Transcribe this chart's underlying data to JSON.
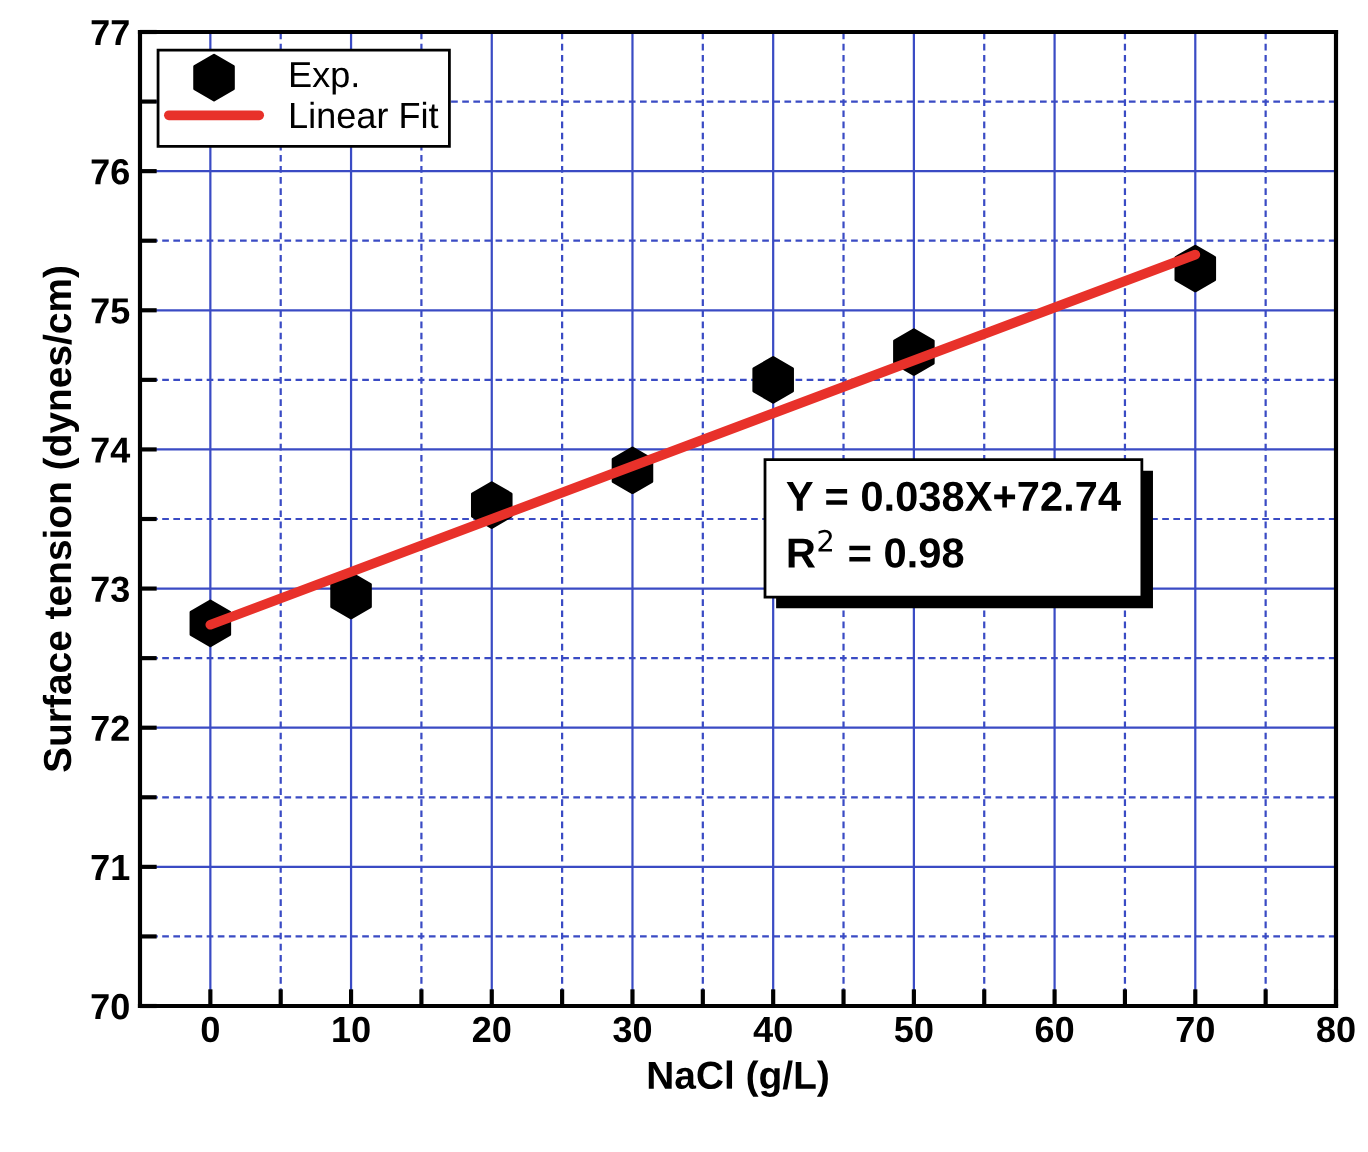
{
  "chart_data": {
    "type": "scatter",
    "xlabel": "NaCl (g/L)",
    "ylabel": "Surface tension (dynes/cm)",
    "xlim": [
      -5,
      80
    ],
    "xticks": [
      0,
      {
        "value": 5,
        "label": null
      },
      10,
      {
        "value": 15,
        "label": null
      },
      20,
      {
        "value": 25,
        "label": null
      },
      30,
      {
        "value": 35,
        "label": null
      },
      40,
      {
        "value": 45,
        "label": null
      },
      50,
      {
        "value": 55,
        "label": null
      },
      60,
      {
        "value": 65,
        "label": null
      },
      70,
      {
        "value": 75,
        "label": null
      },
      80
    ],
    "ylim": [
      70,
      77
    ],
    "yticks": [
      70,
      {
        "value": 70.5,
        "label": null
      },
      71,
      {
        "value": 71.5,
        "label": null
      },
      72,
      {
        "value": 72.5,
        "label": null
      },
      73,
      {
        "value": 73.5,
        "label": null
      },
      74,
      {
        "value": 74.5,
        "label": null
      },
      75,
      {
        "value": 75.5,
        "label": null
      },
      76,
      {
        "value": 76.5,
        "label": null
      },
      77
    ],
    "grid": true,
    "legend": "top left",
    "series": [
      {
        "name": "Exp.",
        "color": "#000000",
        "x": [
          0,
          10,
          20,
          30,
          40,
          50,
          70
        ],
        "values": [
          72.75,
          72.95,
          73.6,
          73.85,
          74.5,
          74.7,
          75.3
        ]
      },
      {
        "name": "Linear Fit",
        "type": "line",
        "color": "#e8312a",
        "line_style": "solid",
        "x": [
          0,
          70
        ],
        "values": [
          72.74,
          75.4
        ]
      }
    ],
    "annotations": [
      "Y = 0.038X+72.74\nR$^{2}$ = 0.98"
    ]
  }
}
